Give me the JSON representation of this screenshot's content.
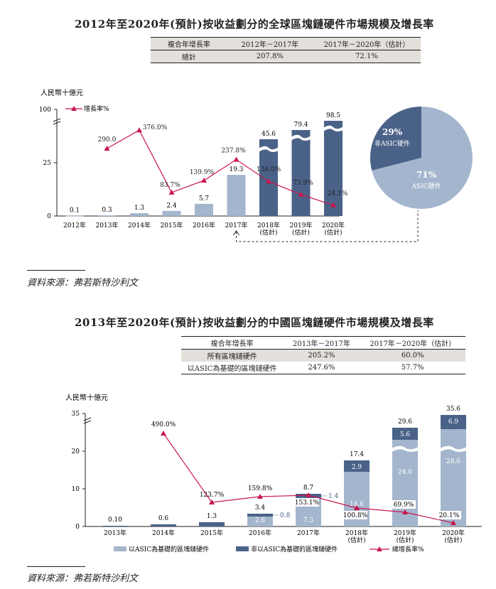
{
  "colors": {
    "asic": "#a4b6cd",
    "non_asic": "#4a6288",
    "gap": "#e5ebf3",
    "growth": "#c8154e",
    "header_shade": "#e3dfda",
    "text": "#231f20"
  },
  "section1": {
    "title": "2012年至2020年(預計)按收益劃分的全球區塊鏈硬件市場規模及增長率",
    "table": {
      "headers": [
        "複合年增長率",
        "2012年－2017年",
        "2017年－2020年（估計）"
      ],
      "rows": [
        [
          "總計",
          "207.8%",
          "72.1%"
        ]
      ]
    },
    "source": "資料來源：弗若斯特沙利文"
  },
  "section2": {
    "title": "2013年至2020年(預計)按收益劃分的中國區塊鏈硬件市場規模及增長率",
    "table": {
      "headers": [
        "複合年增長率",
        "2013年－2017年",
        "2017年－2020年（估計）"
      ],
      "rows": [
        [
          "所有區塊鏈硬件",
          "205.2%",
          "60.0%"
        ],
        [
          "以ASIC為基礎的區塊鏈硬件",
          "247.6%",
          "57.7%"
        ]
      ]
    },
    "source": "資料來源：弗若斯特沙利文"
  },
  "chart_data": [
    {
      "type": "bar",
      "unit_label": "人民幣十億元",
      "categories": [
        "2012年",
        "2013年",
        "2014年",
        "2015年",
        "2016年",
        "2017年",
        "2018年\n(估計)",
        "2019年\n(估計)",
        "2020年\n(估計)"
      ],
      "series": [
        {
          "values": [
            0.1,
            0.3,
            1.3,
            2.4,
            5.7,
            19.3,
            45.6,
            79.4,
            98.5
          ],
          "labels": [
            "0.1",
            "0.3",
            "1.3",
            "2.4",
            "5.7",
            "19.3",
            "45.6",
            "79.4",
            "98.5"
          ]
        },
        {
          "name": "增長率%",
          "type": "line",
          "values": [
            null,
            290.0,
            376.0,
            83.7,
            139.9,
            237.8,
            136.0,
            73.9,
            24.1
          ],
          "labels": [
            "",
            "290.0",
            "376.0%",
            "83.7%",
            "139.9%",
            "237.8%",
            "136.0%",
            "73.9%",
            "24.1%"
          ]
        }
      ],
      "yticks": [
        "0",
        "25",
        "100"
      ],
      "ylim": [
        0,
        100
      ],
      "axis_break": true,
      "legend": "top-left",
      "pie": {
        "slices": [
          {
            "label": "ASIC硬件",
            "pct": "71%",
            "value": 71
          },
          {
            "label": "非ASIC硬件",
            "pct": "29%",
            "value": 29
          }
        ]
      }
    },
    {
      "type": "bar",
      "unit_label": "人民幣十億元",
      "categories": [
        "2013年",
        "2014年",
        "2015年",
        "2016年",
        "2017年",
        "2018年\n(估計)",
        "2019年\n(估計)",
        "2020年\n(估計)"
      ],
      "totals": [
        "0.10",
        "0.6",
        "1.3",
        "3.4",
        "8.7",
        "17.4",
        "29.6",
        "35.6"
      ],
      "series": [
        {
          "name": "以ASIC為基礎的區塊鏈硬件",
          "values": [
            0.1,
            0.6,
            1.3,
            2.6,
            7.3,
            14.6,
            24.0,
            28.6
          ],
          "labels": [
            "",
            "",
            "",
            "2.6",
            "7.3",
            "14.6",
            "24.0",
            "28.6"
          ]
        },
        {
          "name": "非以ASIC為基礎的區塊鏈硬件",
          "values": [
            0,
            0,
            0,
            0.8,
            1.4,
            2.9,
            5.6,
            6.9
          ],
          "labels": [
            "",
            "",
            "",
            "0.8",
            "1.4",
            "2.9",
            "5.6",
            "6.9"
          ]
        },
        {
          "name": "總增長率%",
          "type": "line",
          "values": [
            null,
            490.0,
            123.7,
            159.8,
            153.1,
            100.8,
            69.9,
            20.1
          ],
          "labels": [
            "",
            "490.0%",
            "123.7%",
            "159.8%",
            "153.1%",
            "100.8%",
            "69.9%",
            "20.1%"
          ]
        }
      ],
      "yticks": [
        "0",
        "10",
        "20",
        "35"
      ],
      "ylim": [
        0,
        35
      ],
      "axis_break": true,
      "legend": "bottom"
    }
  ]
}
